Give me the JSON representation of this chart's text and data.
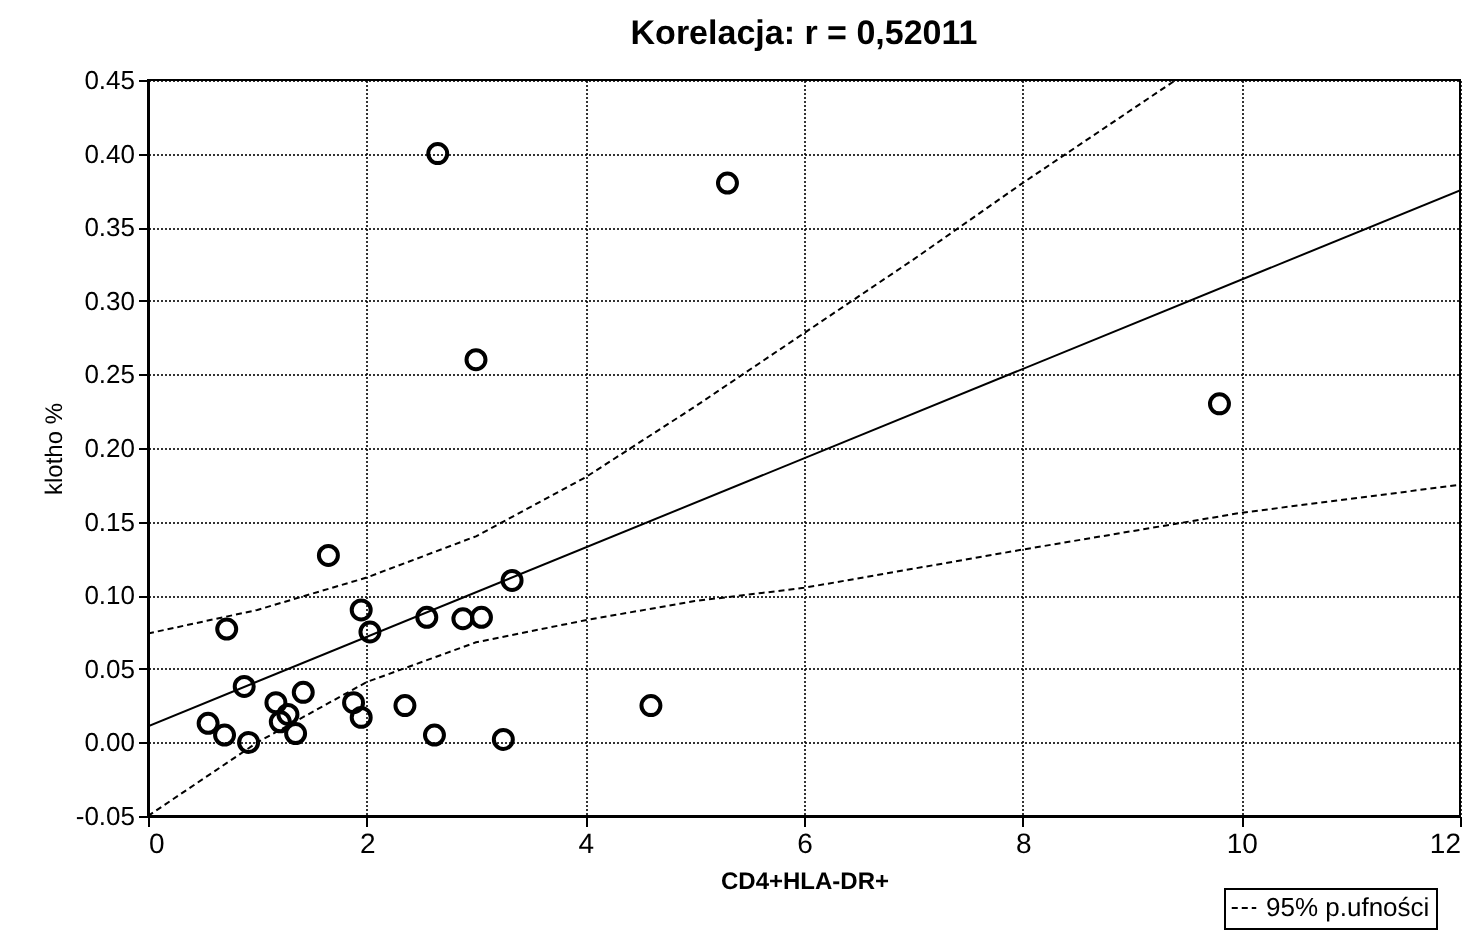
{
  "chart_data": {
    "type": "scatter",
    "title": "Korelacja: r =   0,52011",
    "xlabel": "CD4+HLA-DR+",
    "ylabel": "klotho  %",
    "xlim": [
      0,
      12
    ],
    "xticks": [
      {
        "value": 0,
        "label": "0"
      },
      {
        "value": 2,
        "label": "2"
      },
      {
        "value": 4,
        "label": "4"
      },
      {
        "value": 6,
        "label": "6"
      },
      {
        "value": 8,
        "label": "8"
      },
      {
        "value": 10,
        "label": "10"
      },
      {
        "value": 12,
        "label": "12"
      }
    ],
    "ylim": [
      -0.05,
      0.45
    ],
    "yticks": [
      {
        "value": -0.05,
        "label": "-0.05"
      },
      {
        "value": 0,
        "label": "0.00"
      },
      {
        "value": 0.05,
        "label": "0.05"
      },
      {
        "value": 0.1,
        "label": "0.10"
      },
      {
        "value": 0.15,
        "label": "0.15"
      },
      {
        "value": 0.2,
        "label": "0.20"
      },
      {
        "value": 0.25,
        "label": "0.25"
      },
      {
        "value": 0.3,
        "label": "0.30"
      },
      {
        "value": 0.35,
        "label": "0.35"
      },
      {
        "value": 0.4,
        "label": "0.40"
      },
      {
        "value": 0.45,
        "label": "0.45"
      }
    ],
    "grid": true,
    "legend": "bottom right",
    "series": [
      {
        "marker": "circle",
        "color": "#000000",
        "x": [
          0.55,
          0.7,
          0.72,
          0.88,
          0.92,
          1.17,
          1.21,
          1.28,
          1.35,
          1.42,
          1.65,
          1.88,
          1.95,
          1.95,
          2.03,
          2.35,
          2.55,
          2.62,
          2.65,
          2.88,
          3.0,
          3.05,
          3.25,
          3.33,
          4.6,
          5.3,
          9.8
        ],
        "values": [
          0.013,
          0.005,
          0.077,
          0.038,
          0.0,
          0.027,
          0.014,
          0.019,
          0.006,
          0.034,
          0.127,
          0.027,
          0.017,
          0.09,
          0.075,
          0.025,
          0.085,
          0.005,
          0.4,
          0.084,
          0.26,
          0.085,
          0.002,
          0.11,
          0.025,
          0.38,
          0.23
        ]
      },
      {
        "type": "line",
        "marker": "none",
        "color": "#000000",
        "line_style": "solid",
        "x": [
          0,
          12
        ],
        "values": [
          0.011,
          0.375
        ]
      },
      {
        "type": "line",
        "marker": "none",
        "color": "#000000",
        "line_style": "dashed",
        "name": "95% p.ufności",
        "x": [
          0,
          1,
          2,
          3,
          4,
          5,
          6,
          7,
          8,
          9,
          9.4
        ],
        "values": [
          0.074,
          0.09,
          0.112,
          0.14,
          0.18,
          0.228,
          0.278,
          0.328,
          0.38,
          0.43,
          0.45
        ]
      },
      {
        "type": "line",
        "marker": "none",
        "color": "#000000",
        "line_style": "dashed",
        "x": [
          0,
          1,
          2,
          3,
          4,
          5,
          6,
          8,
          10,
          12
        ],
        "values": [
          -0.05,
          0.0,
          0.041,
          0.068,
          0.083,
          0.096,
          0.105,
          0.131,
          0.156,
          0.175
        ]
      }
    ]
  }
}
